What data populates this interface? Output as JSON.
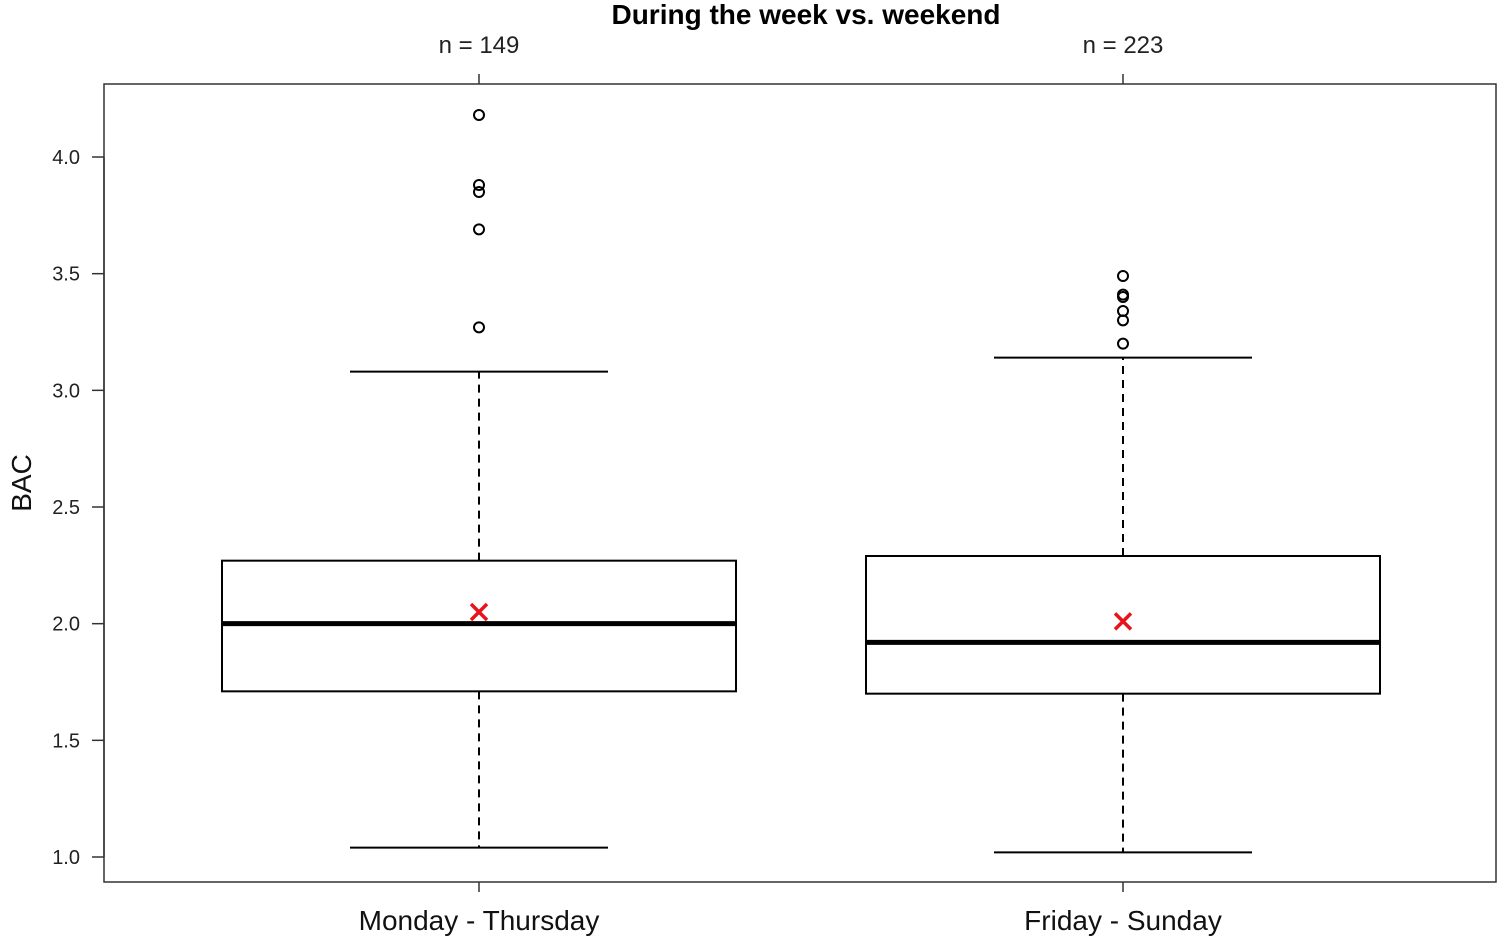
{
  "chart_data": {
    "type": "box",
    "title": "During the week vs. weekend",
    "ylabel": "BAC",
    "xlabel": "",
    "ylim": [
      1.0,
      4.0
    ],
    "yticks": [
      "1.0",
      "1.5",
      "2.0",
      "2.5",
      "3.0",
      "3.5",
      "4.0"
    ],
    "grid": false,
    "categories": [
      "Monday - Thursday",
      "Friday - Sunday"
    ],
    "counts": [
      "n = 149",
      "n = 223"
    ],
    "boxes": [
      {
        "category": "Monday - Thursday",
        "whisker_low": 1.04,
        "q1": 1.71,
        "median": 2.0,
        "q3": 2.27,
        "whisker_high": 3.08,
        "mean": 2.05,
        "outliers": [
          3.27,
          3.69,
          3.85,
          3.88,
          4.18
        ]
      },
      {
        "category": "Friday - Sunday",
        "whisker_low": 1.02,
        "q1": 1.7,
        "median": 1.92,
        "q3": 2.29,
        "whisker_high": 3.14,
        "mean": 2.01,
        "outliers": [
          3.2,
          3.3,
          3.34,
          3.4,
          3.41,
          3.49
        ]
      }
    ],
    "colors": {
      "mean_marker": "#e8141b",
      "box": "#000000"
    }
  }
}
